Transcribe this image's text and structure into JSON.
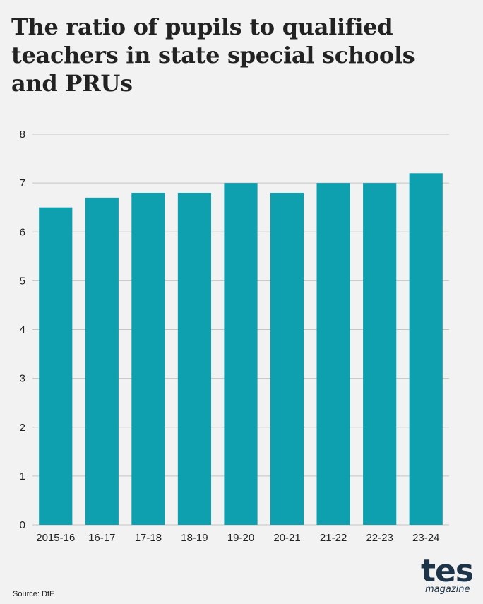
{
  "title": "The ratio of pupils to qualified teachers in state special schools and PRUs",
  "source": "Source: DfE",
  "logo": {
    "main": "tes",
    "sub": "magazine"
  },
  "colors": {
    "bar": "#0fa0b0",
    "grid": "#c4c4c4",
    "background": "#f2f2f2",
    "logo": "#1d3347"
  },
  "chart_data": {
    "type": "bar",
    "title": "The ratio of pupils to qualified teachers in state special schools and PRUs",
    "xlabel": "",
    "ylabel": "",
    "categories": [
      "2015-16",
      "16-17",
      "17-18",
      "18-19",
      "19-20",
      "20-21",
      "21-22",
      "22-23",
      "23-24"
    ],
    "values": [
      6.5,
      6.7,
      6.8,
      6.8,
      7.0,
      6.8,
      7.0,
      7.0,
      7.2
    ],
    "ylim": [
      0,
      8
    ],
    "yticks": [
      0,
      1,
      2,
      3,
      4,
      5,
      6,
      7,
      8
    ],
    "grid": true,
    "legend": "none"
  }
}
